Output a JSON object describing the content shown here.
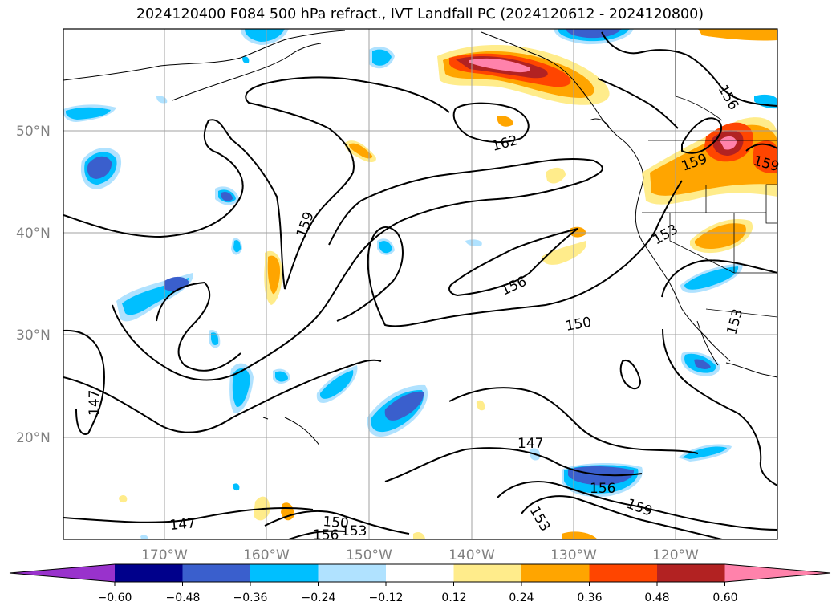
{
  "title": "2024120400 F084 500 hPa refract., IVT Landfall PC (2024120612 - 2024120800)",
  "lat_labels": [
    "50°N",
    "40°N",
    "30°N",
    "20°N"
  ],
  "lon_labels": [
    "170°W",
    "160°W",
    "150°W",
    "140°W",
    "130°W",
    "120°W"
  ],
  "colorbar": {
    "colors": [
      "#9932cc",
      "#00008b",
      "#3a5fcd",
      "#00bfff",
      "#b0e2ff",
      "#ffffff",
      "#ffec8b",
      "#ffa500",
      "#ff4500",
      "#b22222",
      "#ff82ab"
    ],
    "tick_labels": [
      "−0.60",
      "−0.48",
      "−0.36",
      "−0.24",
      "−0.12",
      "0.12",
      "0.24",
      "0.36",
      "0.48",
      "0.60"
    ]
  },
  "contour_labels": [
    "156",
    "162",
    "159",
    "159",
    "159",
    "153",
    "156",
    "150",
    "153",
    "147",
    "147",
    "156",
    "159",
    "153",
    "147",
    "150",
    "156",
    "153"
  ]
}
